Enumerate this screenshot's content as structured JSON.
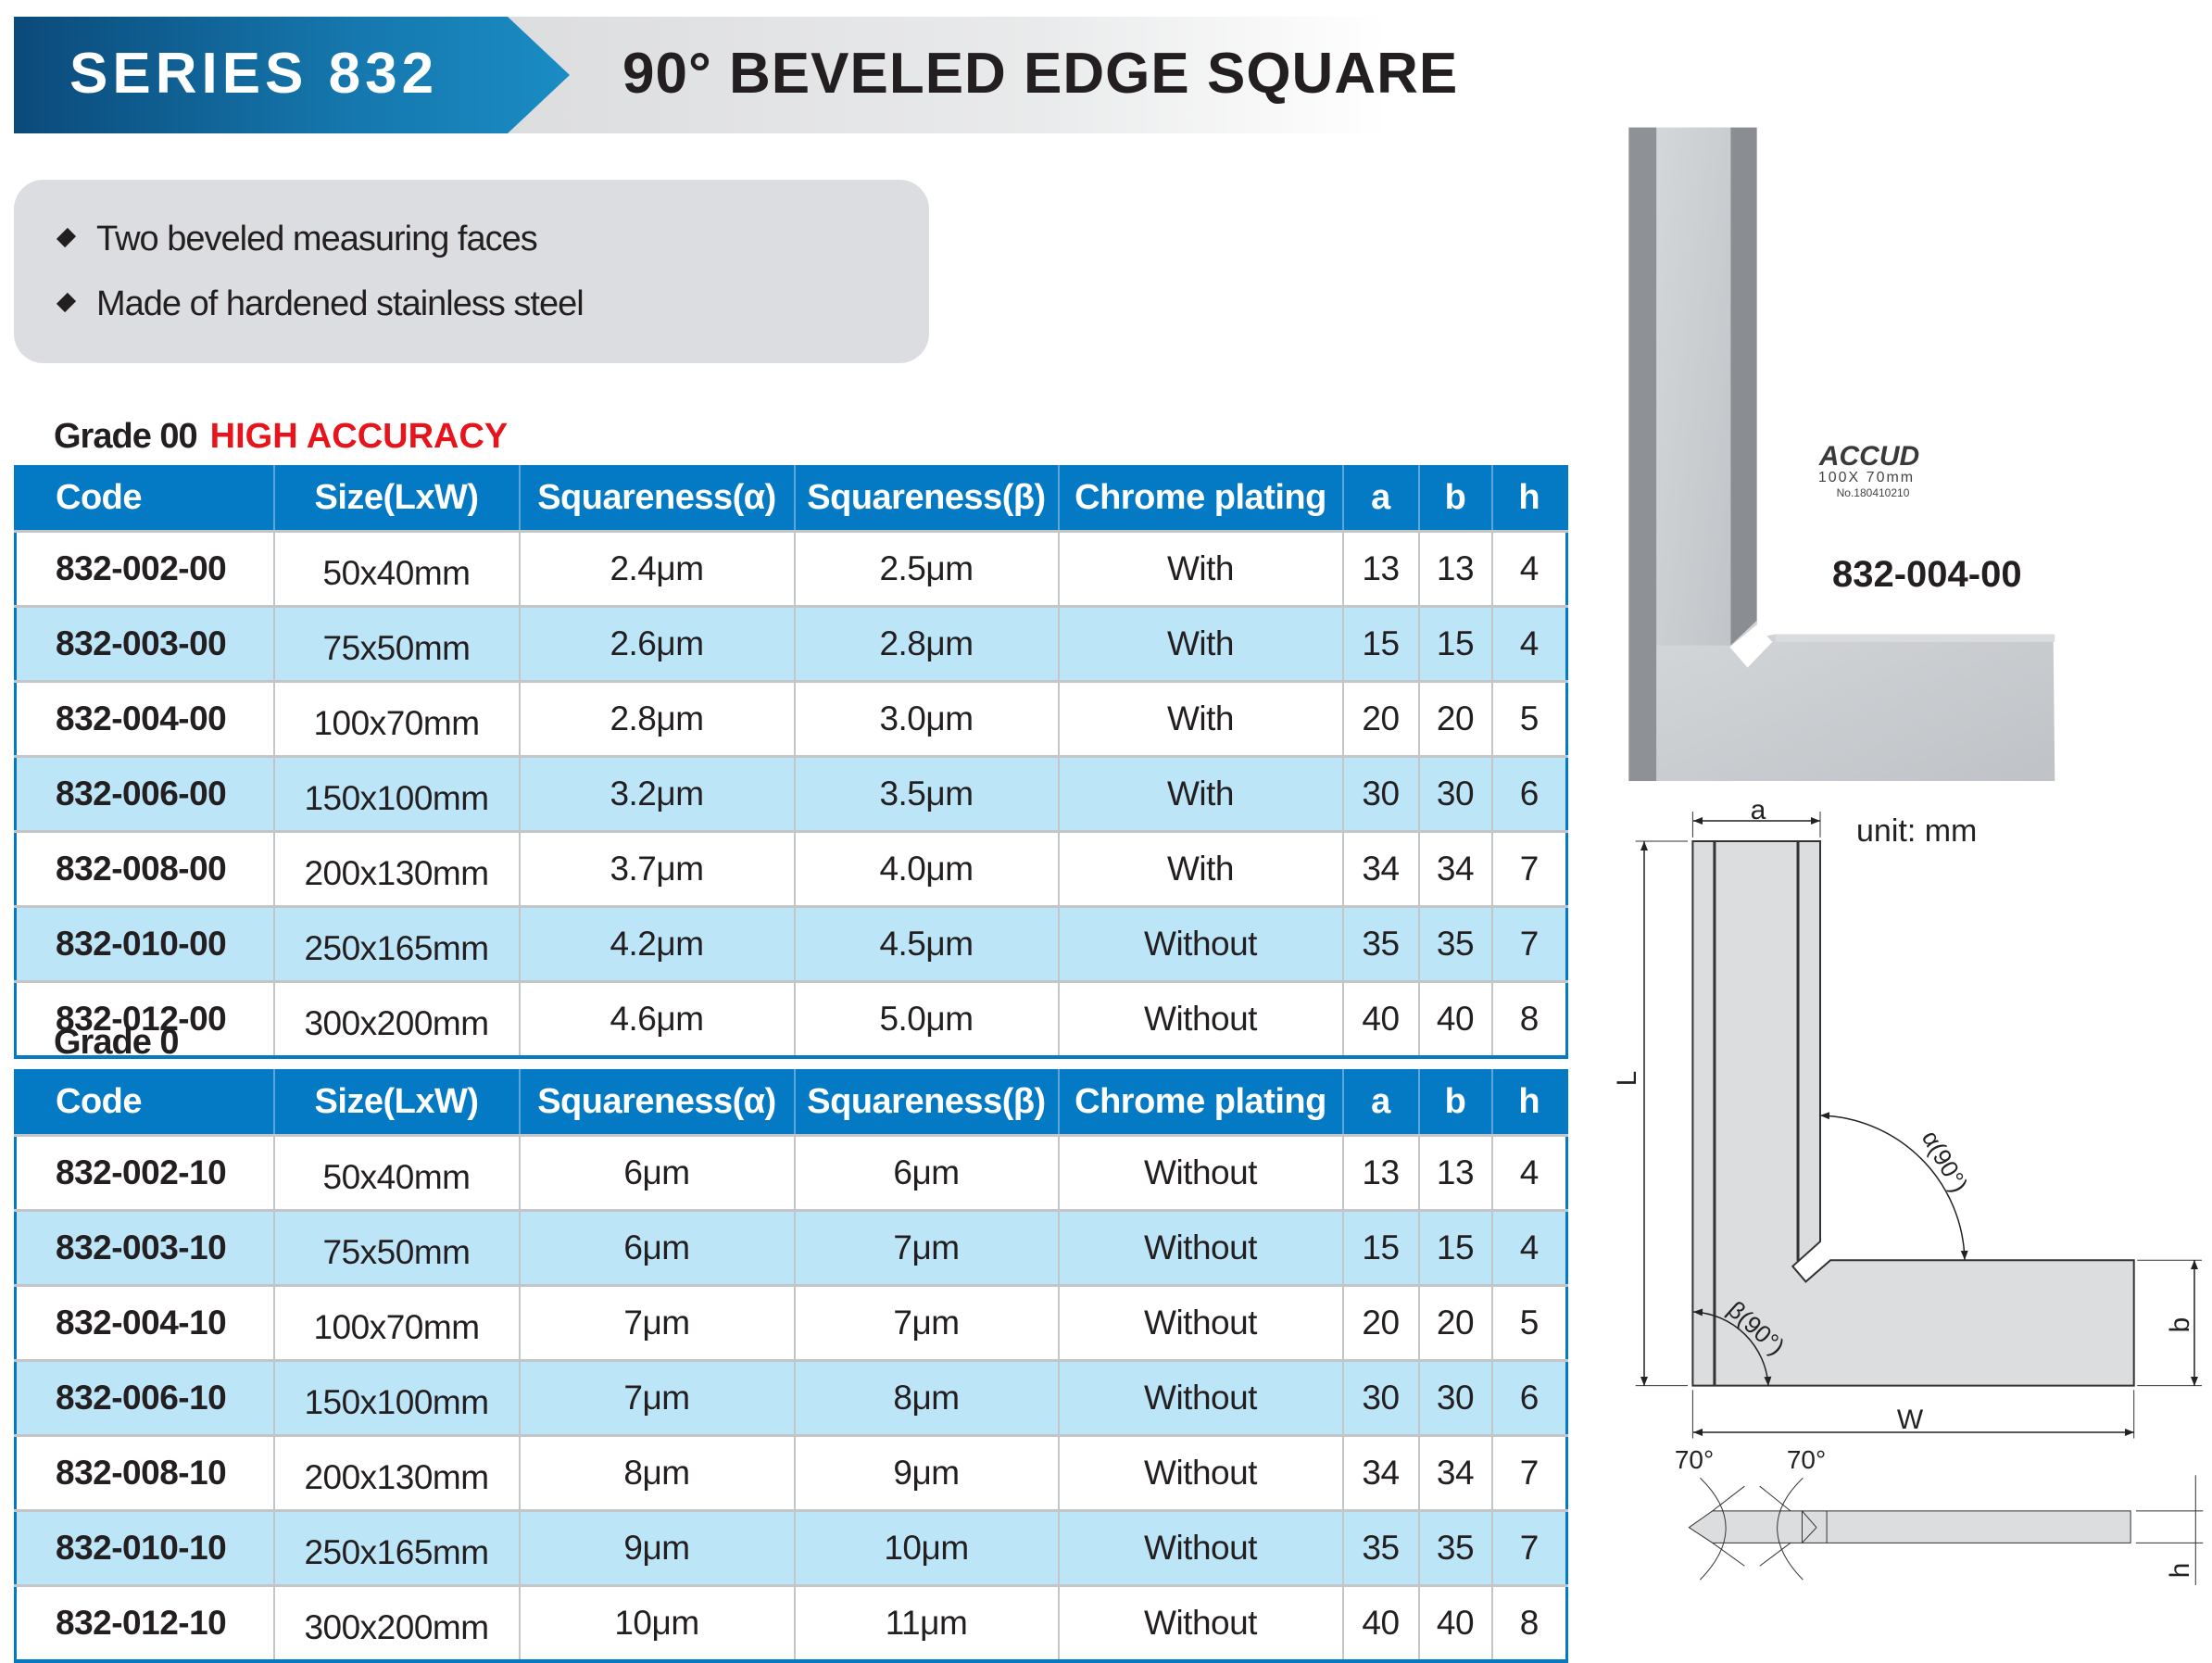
{
  "header": {
    "series": "SERIES 832",
    "title": "90° BEVELED EDGE SQUARE"
  },
  "features": [
    "Two beveled measuring faces",
    "Made of hardened stainless steel"
  ],
  "columns": [
    "Code",
    "Size(LxW)",
    "Squareness(α)",
    "Squareness(β)",
    "Chrome plating",
    "a",
    "b",
    "h"
  ],
  "grade00": {
    "label": "Grade 00",
    "highlight": "HIGH ACCURACY",
    "rows": [
      [
        "832-002-00",
        "50x40mm",
        "2.4μm",
        "2.5μm",
        "With",
        "13",
        "13",
        "4"
      ],
      [
        "832-003-00",
        "75x50mm",
        "2.6μm",
        "2.8μm",
        "With",
        "15",
        "15",
        "4"
      ],
      [
        "832-004-00",
        "100x70mm",
        "2.8μm",
        "3.0μm",
        "With",
        "20",
        "20",
        "5"
      ],
      [
        "832-006-00",
        "150x100mm",
        "3.2μm",
        "3.5μm",
        "With",
        "30",
        "30",
        "6"
      ],
      [
        "832-008-00",
        "200x130mm",
        "3.7μm",
        "4.0μm",
        "With",
        "34",
        "34",
        "7"
      ],
      [
        "832-010-00",
        "250x165mm",
        "4.2μm",
        "4.5μm",
        "Without",
        "35",
        "35",
        "7"
      ],
      [
        "832-012-00",
        "300x200mm",
        "4.6μm",
        "5.0μm",
        "Without",
        "40",
        "40",
        "8"
      ]
    ]
  },
  "grade0": {
    "label": "Grade 0",
    "rows": [
      [
        "832-002-10",
        "50x40mm",
        "6μm",
        "6μm",
        "Without",
        "13",
        "13",
        "4"
      ],
      [
        "832-003-10",
        "75x50mm",
        "6μm",
        "7μm",
        "Without",
        "15",
        "15",
        "4"
      ],
      [
        "832-004-10",
        "100x70mm",
        "7μm",
        "7μm",
        "Without",
        "20",
        "20",
        "5"
      ],
      [
        "832-006-10",
        "150x100mm",
        "7μm",
        "8μm",
        "Without",
        "30",
        "30",
        "6"
      ],
      [
        "832-008-10",
        "200x130mm",
        "8μm",
        "9μm",
        "Without",
        "34",
        "34",
        "7"
      ],
      [
        "832-010-10",
        "250x165mm",
        "9μm",
        "10μm",
        "Without",
        "35",
        "35",
        "7"
      ],
      [
        "832-012-10",
        "300x200mm",
        "10μm",
        "11μm",
        "Without",
        "40",
        "40",
        "8"
      ]
    ]
  },
  "photo": {
    "label": "832-004-00",
    "brand": "ACCUD",
    "engraving_size": "100X 70mm",
    "engraving_no": "No.180410210"
  },
  "drawing": {
    "unit": "unit: mm",
    "dim_a": "a",
    "dim_L": "L",
    "dim_W": "W",
    "dim_b": "b",
    "dim_h": "h",
    "alpha": "α(90°)",
    "beta": "β(90°)",
    "bevel_left": "70°",
    "bevel_right": "70°"
  },
  "colors": {
    "header_blue": "#0479c4",
    "row_alt": "#bde5f8",
    "accent_red": "#e8141b"
  }
}
